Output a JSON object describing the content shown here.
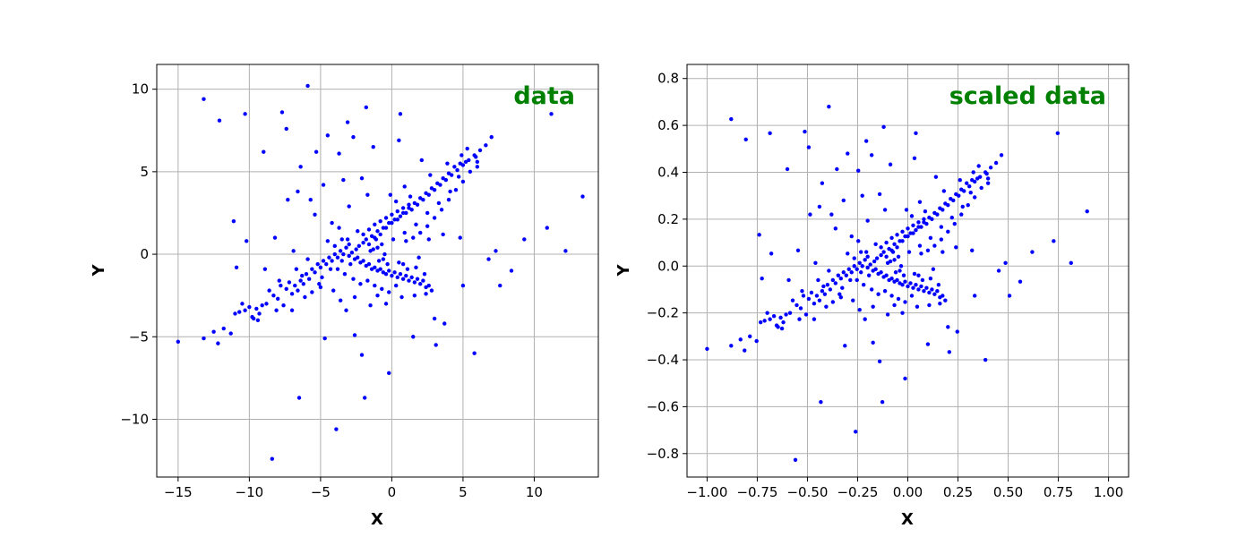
{
  "chart_data": [
    {
      "type": "scatter",
      "title": "data",
      "xlabel": "X",
      "ylabel": "Y",
      "xlim": [
        -16.5,
        14.5
      ],
      "ylim": [
        -13.5,
        11.5
      ],
      "xticks": [
        -15,
        -10,
        -5,
        0,
        5,
        10
      ],
      "yticks": [
        -10,
        -5,
        0,
        5,
        10
      ],
      "grid": true,
      "legend": "none",
      "points": [
        [
          -15.0,
          -5.3
        ],
        [
          -13.2,
          -5.1
        ],
        [
          -12.5,
          -4.7
        ],
        [
          -12.2,
          -5.4
        ],
        [
          -11.8,
          -4.5
        ],
        [
          -11.3,
          -4.8
        ],
        [
          -11.0,
          -3.6
        ],
        [
          -10.7,
          -3.5
        ],
        [
          -10.3,
          -3.4
        ],
        [
          -10.0,
          -3.2
        ],
        [
          -9.7,
          -3.9
        ],
        [
          -9.5,
          -3.3
        ],
        [
          -9.3,
          -3.6
        ],
        [
          -9.1,
          -3.1
        ],
        [
          -8.8,
          -3.0
        ],
        [
          -8.6,
          -2.2
        ],
        [
          -8.3,
          -2.5
        ],
        [
          -8.0,
          -2.7
        ],
        [
          -7.8,
          -1.9
        ],
        [
          -7.6,
          -3.1
        ],
        [
          -7.4,
          -2.1
        ],
        [
          -7.2,
          -1.7
        ],
        [
          -7.0,
          -2.4
        ],
        [
          -6.8,
          -1.9
        ],
        [
          -6.6,
          -2.2
        ],
        [
          -6.4,
          -1.6
        ],
        [
          -6.2,
          -1.8
        ],
        [
          -6.0,
          -1.2
        ],
        [
          -5.8,
          -1.5
        ],
        [
          -5.6,
          -0.9
        ],
        [
          -5.4,
          -1.1
        ],
        [
          -5.2,
          -0.6
        ],
        [
          -5.0,
          -0.8
        ],
        [
          -4.8,
          -0.4
        ],
        [
          -4.6,
          -0.6
        ],
        [
          -4.4,
          -0.2
        ],
        [
          -4.2,
          -0.4
        ],
        [
          -4.0,
          0.0
        ],
        [
          -3.8,
          -0.2
        ],
        [
          -3.6,
          0.2
        ],
        [
          -3.4,
          0.0
        ],
        [
          -3.2,
          0.4
        ],
        [
          -3.0,
          -0.1
        ],
        [
          -2.8,
          0.1
        ],
        [
          -2.6,
          -0.3
        ],
        [
          -2.4,
          -0.2
        ],
        [
          -2.2,
          -0.5
        ],
        [
          -2.0,
          -0.4
        ],
        [
          -1.8,
          -0.7
        ],
        [
          -1.6,
          -0.6
        ],
        [
          -1.4,
          -0.9
        ],
        [
          -1.2,
          -0.8
        ],
        [
          -1.0,
          -1.0
        ],
        [
          -0.8,
          -0.9
        ],
        [
          -0.6,
          -1.1
        ],
        [
          -0.4,
          -1.2
        ],
        [
          -0.2,
          -1.0
        ],
        [
          0.0,
          -1.3
        ],
        [
          0.2,
          -1.1
        ],
        [
          0.4,
          -1.4
        ],
        [
          0.6,
          -1.2
        ],
        [
          0.8,
          -1.5
        ],
        [
          1.0,
          -1.3
        ],
        [
          1.2,
          -1.6
        ],
        [
          1.4,
          -1.4
        ],
        [
          1.6,
          -1.7
        ],
        [
          1.8,
          -1.5
        ],
        [
          2.0,
          -1.8
        ],
        [
          2.2,
          -1.6
        ],
        [
          2.4,
          -2.0
        ],
        [
          2.6,
          -1.9
        ],
        [
          2.8,
          -2.2
        ],
        [
          -4.5,
          0.8
        ],
        [
          -4.0,
          0.5
        ],
        [
          -3.5,
          0.9
        ],
        [
          -3.0,
          0.6
        ],
        [
          -2.5,
          0.3
        ],
        [
          -2.0,
          0.7
        ],
        [
          -1.5,
          0.2
        ],
        [
          -1.0,
          0.4
        ],
        [
          -0.5,
          0.0
        ],
        [
          -3.8,
          -0.9
        ],
        [
          -3.3,
          -1.2
        ],
        [
          -2.7,
          -1.5
        ],
        [
          -2.2,
          -1.8
        ],
        [
          -1.7,
          -1.6
        ],
        [
          -1.2,
          -1.9
        ],
        [
          -0.7,
          -2.1
        ],
        [
          -0.2,
          -2.3
        ],
        [
          -2.0,
          1.2
        ],
        [
          -1.6,
          1.5
        ],
        [
          -1.2,
          1.8
        ],
        [
          -0.8,
          2.0
        ],
        [
          -0.4,
          2.2
        ],
        [
          0.0,
          2.4
        ],
        [
          0.4,
          2.6
        ],
        [
          0.8,
          2.8
        ],
        [
          1.2,
          3.0
        ],
        [
          -1.8,
          0.9
        ],
        [
          -1.4,
          1.1
        ],
        [
          -1.0,
          1.4
        ],
        [
          -0.6,
          1.6
        ],
        [
          -0.2,
          1.9
        ],
        [
          0.2,
          2.1
        ],
        [
          0.6,
          2.3
        ],
        [
          1.0,
          2.5
        ],
        [
          1.4,
          2.7
        ],
        [
          1.8,
          3.0
        ],
        [
          2.2,
          3.3
        ],
        [
          2.6,
          3.6
        ],
        [
          3.0,
          3.9
        ],
        [
          3.4,
          4.2
        ],
        [
          3.8,
          4.5
        ],
        [
          4.2,
          4.8
        ],
        [
          4.6,
          5.1
        ],
        [
          5.0,
          5.4
        ],
        [
          5.4,
          5.7
        ],
        [
          5.8,
          6.0
        ],
        [
          6.2,
          6.3
        ],
        [
          6.6,
          6.6
        ],
        [
          7.0,
          7.1
        ],
        [
          5.2,
          5.6
        ],
        [
          4.8,
          5.5
        ],
        [
          4.4,
          5.3
        ],
        [
          4.0,
          4.9
        ],
        [
          3.6,
          4.6
        ],
        [
          3.2,
          4.3
        ],
        [
          2.8,
          4.0
        ],
        [
          2.4,
          3.7
        ],
        [
          2.0,
          3.4
        ],
        [
          1.6,
          3.1
        ],
        [
          1.2,
          2.8
        ],
        [
          0.8,
          2.5
        ],
        [
          0.4,
          2.1
        ],
        [
          0.0,
          1.9
        ],
        [
          -0.4,
          1.6
        ],
        [
          -0.8,
          1.2
        ],
        [
          -1.2,
          1.0
        ],
        [
          -1.6,
          0.6
        ],
        [
          1.0,
          0.8
        ],
        [
          1.5,
          1.0
        ],
        [
          2.0,
          1.3
        ],
        [
          2.5,
          1.7
        ],
        [
          3.0,
          2.2
        ],
        [
          3.5,
          2.7
        ],
        [
          4.0,
          3.3
        ],
        [
          4.5,
          3.9
        ],
        [
          5.0,
          4.4
        ],
        [
          5.5,
          5.0
        ],
        [
          6.0,
          5.6
        ],
        [
          -13.2,
          9.4
        ],
        [
          -12.1,
          8.1
        ],
        [
          -10.3,
          8.5
        ],
        [
          -7.7,
          8.6
        ],
        [
          -5.9,
          10.2
        ],
        [
          -3.1,
          8.0
        ],
        [
          -1.8,
          8.9
        ],
        [
          0.6,
          8.5
        ],
        [
          11.2,
          8.5
        ],
        [
          13.4,
          3.5
        ],
        [
          12.2,
          0.2
        ],
        [
          10.9,
          1.6
        ],
        [
          9.3,
          0.9
        ],
        [
          8.4,
          -1.0
        ],
        [
          7.6,
          -1.9
        ],
        [
          7.3,
          0.2
        ],
        [
          6.8,
          -0.3
        ],
        [
          5.8,
          -6.0
        ],
        [
          5.0,
          -1.9
        ],
        [
          3.7,
          -4.2
        ],
        [
          3.1,
          -5.5
        ],
        [
          1.5,
          -5.0
        ],
        [
          -0.2,
          -7.2
        ],
        [
          -1.9,
          -8.7
        ],
        [
          -2.1,
          -6.1
        ],
        [
          -2.6,
          -4.9
        ],
        [
          -3.9,
          -10.6
        ],
        [
          -4.7,
          -5.1
        ],
        [
          -6.5,
          -8.7
        ],
        [
          -8.4,
          -12.4
        ],
        [
          -11.1,
          2.0
        ],
        [
          -10.2,
          0.8
        ],
        [
          -10.9,
          -0.8
        ],
        [
          -9.0,
          6.2
        ],
        [
          -7.4,
          7.6
        ],
        [
          -6.4,
          5.3
        ],
        [
          -5.3,
          6.2
        ],
        [
          -4.5,
          7.2
        ],
        [
          -3.7,
          6.1
        ],
        [
          -2.7,
          7.1
        ],
        [
          -1.3,
          6.5
        ],
        [
          0.5,
          6.9
        ],
        [
          -6.6,
          3.8
        ],
        [
          -5.7,
          3.3
        ],
        [
          -4.8,
          4.2
        ],
        [
          -3.4,
          4.5
        ],
        [
          -2.1,
          4.6
        ],
        [
          -7.3,
          3.3
        ],
        [
          -8.2,
          1.0
        ],
        [
          -6.9,
          0.2
        ],
        [
          -5.4,
          2.4
        ],
        [
          -4.2,
          1.9
        ],
        [
          -3.0,
          2.9
        ],
        [
          -1.7,
          3.6
        ],
        [
          0.9,
          4.1
        ],
        [
          2.1,
          5.7
        ],
        [
          4.8,
          1.0
        ],
        [
          3.6,
          1.2
        ],
        [
          2.6,
          0.9
        ],
        [
          1.9,
          -0.2
        ],
        [
          0.8,
          -0.6
        ],
        [
          -0.6,
          -0.3
        ],
        [
          -1.1,
          0.9
        ],
        [
          -2.4,
          1.4
        ],
        [
          -3.7,
          1.6
        ],
        [
          -4.9,
          -1.4
        ],
        [
          -5.9,
          -0.3
        ],
        [
          -6.7,
          -0.9
        ],
        [
          -7.9,
          -1.6
        ],
        [
          -8.9,
          -0.9
        ],
        [
          -9.8,
          -3.8
        ],
        [
          -10.5,
          -3.0
        ],
        [
          -3.2,
          -3.4
        ],
        [
          -1.5,
          -3.1
        ],
        [
          -0.4,
          -3.0
        ],
        [
          0.7,
          -2.6
        ],
        [
          1.6,
          -2.5
        ],
        [
          2.4,
          -2.4
        ],
        [
          3.0,
          -3.9
        ],
        [
          -3.6,
          -2.8
        ],
        [
          -2.6,
          -2.6
        ],
        [
          -1.0,
          -2.5
        ],
        [
          0.3,
          -1.9
        ],
        [
          -4.1,
          -2.2
        ],
        [
          -5.0,
          -2.0
        ],
        [
          -6.1,
          -2.6
        ],
        [
          -7.0,
          -3.4
        ],
        [
          -8.1,
          -3.4
        ],
        [
          -9.4,
          -4.0
        ],
        [
          -0.1,
          3.6
        ],
        [
          0.3,
          3.2
        ],
        [
          1.3,
          3.5
        ],
        [
          2.7,
          4.8
        ],
        [
          3.9,
          5.5
        ],
        [
          4.9,
          6.0
        ],
        [
          5.3,
          6.4
        ],
        [
          6.0,
          5.3
        ],
        [
          -0.9,
          -0.4
        ],
        [
          -0.3,
          -0.6
        ],
        [
          0.5,
          -0.5
        ],
        [
          1.1,
          -0.9
        ],
        [
          1.7,
          -0.8
        ],
        [
          2.3,
          -1.2
        ],
        [
          -2.9,
          -0.6
        ],
        [
          -3.5,
          -0.4
        ],
        [
          -4.3,
          -0.9
        ],
        [
          -5.1,
          -1.8
        ],
        [
          -5.6,
          -2.3
        ],
        [
          -6.3,
          -1.3
        ],
        [
          -3.1,
          0.9
        ],
        [
          -2.3,
          0.5
        ],
        [
          -1.3,
          0.3
        ],
        [
          -0.7,
          0.6
        ],
        [
          0.1,
          0.9
        ],
        [
          0.9,
          1.3
        ],
        [
          1.7,
          1.8
        ],
        [
          2.5,
          2.5
        ],
        [
          3.3,
          3.1
        ],
        [
          4.1,
          3.8
        ],
        [
          4.7,
          4.7
        ],
        [
          5.9,
          5.9
        ]
      ]
    },
    {
      "type": "scatter",
      "title": "scaled data",
      "xlabel": "X",
      "ylabel": "Y",
      "xlim": [
        -1.1,
        1.1
      ],
      "ylim": [
        -0.9,
        0.86
      ],
      "xticks": [
        -1.0,
        -0.75,
        -0.5,
        -0.25,
        0.0,
        0.25,
        0.5,
        0.75,
        1.0
      ],
      "xtick_labels": [
        "−1.00",
        "−0.75",
        "−0.50",
        "−0.25",
        "0.00",
        "0.25",
        "0.50",
        "0.75",
        "1.00"
      ],
      "yticks": [
        -0.8,
        -0.6,
        -0.4,
        -0.2,
        0.0,
        0.2,
        0.4,
        0.6,
        0.8
      ],
      "ytick_labels": [
        "−0.8",
        "−0.6",
        "−0.4",
        "−0.2",
        "0.0",
        "0.2",
        "0.4",
        "0.6",
        "0.8"
      ],
      "grid": true,
      "legend": "none",
      "derived_from": 0,
      "scale": {
        "x_divisor": 15.0,
        "y_divisor": 15.0,
        "y_offset": 0.0
      }
    }
  ],
  "style": {
    "point_color": "#0000ff",
    "title_color": "#008000"
  }
}
